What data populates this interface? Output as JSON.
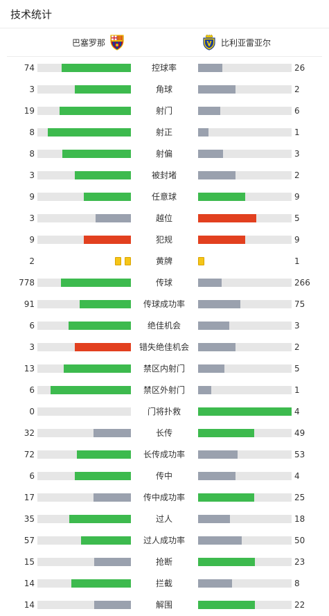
{
  "header": {
    "title": "技术统计"
  },
  "teams": {
    "home": {
      "name": "巴塞罗那",
      "crest_icon": "fc-barcelona-crest-icon"
    },
    "away": {
      "name": "比利亚雷亚尔",
      "crest_icon": "villarreal-crest-icon"
    }
  },
  "colors": {
    "leader": "#3dba4e",
    "trailer": "#9aa1ae",
    "negative": "#e2401f",
    "track": "#e6e6e6",
    "yellow_card": "#f5c518"
  },
  "stats": [
    {
      "label": "控球率",
      "home": 74,
      "away": 26,
      "home_ratio": 0.74,
      "away_ratio": 0.26,
      "home_color": "leader",
      "away_color": "trailer"
    },
    {
      "label": "角球",
      "home": 3,
      "away": 2,
      "home_ratio": 0.6,
      "away_ratio": 0.4,
      "home_color": "leader",
      "away_color": "trailer"
    },
    {
      "label": "射门",
      "home": 19,
      "away": 6,
      "home_ratio": 0.76,
      "away_ratio": 0.24,
      "home_color": "leader",
      "away_color": "trailer"
    },
    {
      "label": "射正",
      "home": 8,
      "away": 1,
      "home_ratio": 0.89,
      "away_ratio": 0.11,
      "home_color": "leader",
      "away_color": "trailer"
    },
    {
      "label": "射偏",
      "home": 8,
      "away": 3,
      "home_ratio": 0.73,
      "away_ratio": 0.27,
      "home_color": "leader",
      "away_color": "trailer"
    },
    {
      "label": "被封堵",
      "home": 3,
      "away": 2,
      "home_ratio": 0.6,
      "away_ratio": 0.4,
      "home_color": "leader",
      "away_color": "trailer"
    },
    {
      "label": "任意球",
      "home": 9,
      "away": 9,
      "home_ratio": 0.5,
      "away_ratio": 0.5,
      "home_color": "leader",
      "away_color": "leader"
    },
    {
      "label": "越位",
      "home": 3,
      "away": 5,
      "home_ratio": 0.375,
      "away_ratio": 0.625,
      "home_color": "trailer",
      "away_color": "negative"
    },
    {
      "label": "犯规",
      "home": 9,
      "away": 9,
      "home_ratio": 0.5,
      "away_ratio": 0.5,
      "home_color": "negative",
      "away_color": "negative"
    },
    {
      "label": "黄牌",
      "home": 2,
      "away": 1,
      "type": "cards"
    },
    {
      "label": "传球",
      "home": 778,
      "away": 266,
      "home_ratio": 0.745,
      "away_ratio": 0.255,
      "home_color": "leader",
      "away_color": "trailer"
    },
    {
      "label": "传球成功率",
      "home": 91,
      "away": 75,
      "home_ratio": 0.55,
      "away_ratio": 0.45,
      "home_color": "leader",
      "away_color": "trailer"
    },
    {
      "label": "绝佳机会",
      "home": 6,
      "away": 3,
      "home_ratio": 0.67,
      "away_ratio": 0.33,
      "home_color": "leader",
      "away_color": "trailer"
    },
    {
      "label": "错失绝佳机会",
      "home": 3,
      "away": 2,
      "home_ratio": 0.6,
      "away_ratio": 0.4,
      "home_color": "negative",
      "away_color": "trailer"
    },
    {
      "label": "禁区内射门",
      "home": 13,
      "away": 5,
      "home_ratio": 0.72,
      "away_ratio": 0.28,
      "home_color": "leader",
      "away_color": "trailer"
    },
    {
      "label": "禁区外射门",
      "home": 6,
      "away": 1,
      "home_ratio": 0.86,
      "away_ratio": 0.14,
      "home_color": "leader",
      "away_color": "trailer"
    },
    {
      "label": "门将扑救",
      "home": 0,
      "away": 4,
      "home_ratio": 0.0,
      "away_ratio": 1.0,
      "home_color": "trailer",
      "away_color": "leader"
    },
    {
      "label": "长传",
      "home": 32,
      "away": 49,
      "home_ratio": 0.4,
      "away_ratio": 0.6,
      "home_color": "trailer",
      "away_color": "leader"
    },
    {
      "label": "长传成功率",
      "home": 72,
      "away": 53,
      "home_ratio": 0.58,
      "away_ratio": 0.42,
      "home_color": "leader",
      "away_color": "trailer"
    },
    {
      "label": "传中",
      "home": 6,
      "away": 4,
      "home_ratio": 0.6,
      "away_ratio": 0.4,
      "home_color": "leader",
      "away_color": "trailer"
    },
    {
      "label": "传中成功率",
      "home": 17,
      "away": 25,
      "home_ratio": 0.4,
      "away_ratio": 0.6,
      "home_color": "trailer",
      "away_color": "leader"
    },
    {
      "label": "过人",
      "home": 35,
      "away": 18,
      "home_ratio": 0.66,
      "away_ratio": 0.34,
      "home_color": "leader",
      "away_color": "trailer"
    },
    {
      "label": "过人成功率",
      "home": 57,
      "away": 50,
      "home_ratio": 0.53,
      "away_ratio": 0.47,
      "home_color": "leader",
      "away_color": "trailer"
    },
    {
      "label": "抢断",
      "home": 15,
      "away": 23,
      "home_ratio": 0.39,
      "away_ratio": 0.61,
      "home_color": "trailer",
      "away_color": "leader"
    },
    {
      "label": "拦截",
      "home": 14,
      "away": 8,
      "home_ratio": 0.64,
      "away_ratio": 0.36,
      "home_color": "leader",
      "away_color": "trailer"
    },
    {
      "label": "解围",
      "home": 14,
      "away": 22,
      "home_ratio": 0.39,
      "away_ratio": 0.61,
      "home_color": "trailer",
      "away_color": "leader"
    }
  ]
}
